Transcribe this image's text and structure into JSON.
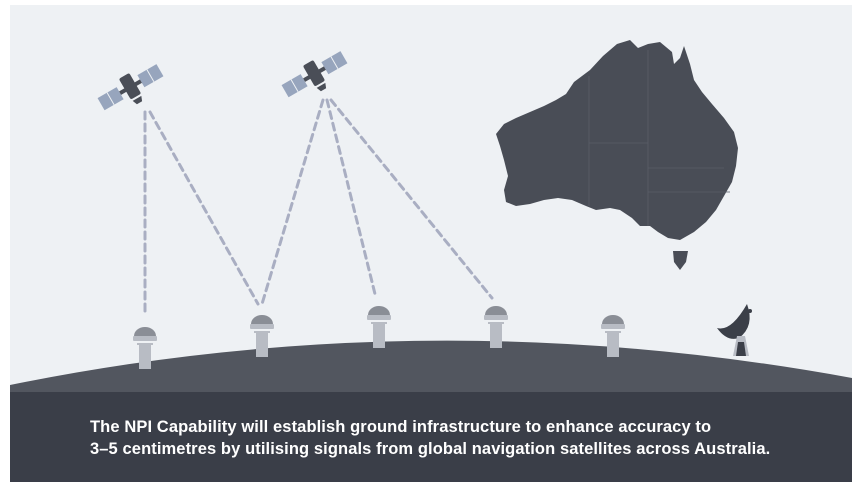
{
  "caption": {
    "line1": "The NPI Capability will establish ground infrastructure to enhance accuracy to",
    "line2": "3–5 centimetres by utilising signals from global navigation satellites across Australia."
  },
  "colors": {
    "sky": "#eef1f4",
    "ground": "#52565f",
    "caption_band": "#3a3e48",
    "australia": "#494d56",
    "satellite_panel": "#97a5bd",
    "satellite_body": "#4a4e57",
    "signal_line": "#a9aec2",
    "station_cap": "#8a8e96",
    "station_base": "#b8bcc4",
    "dish": "#3b3f48",
    "caption_text": "#ffffff"
  },
  "icons": {
    "satellites": [
      "satellite-icon",
      "satellite-icon"
    ],
    "stations": [
      "ground-station-icon",
      "ground-station-icon",
      "ground-station-icon",
      "ground-station-icon",
      "ground-station-icon"
    ],
    "dish": "satellite-dish-icon",
    "map": "australia-map"
  }
}
